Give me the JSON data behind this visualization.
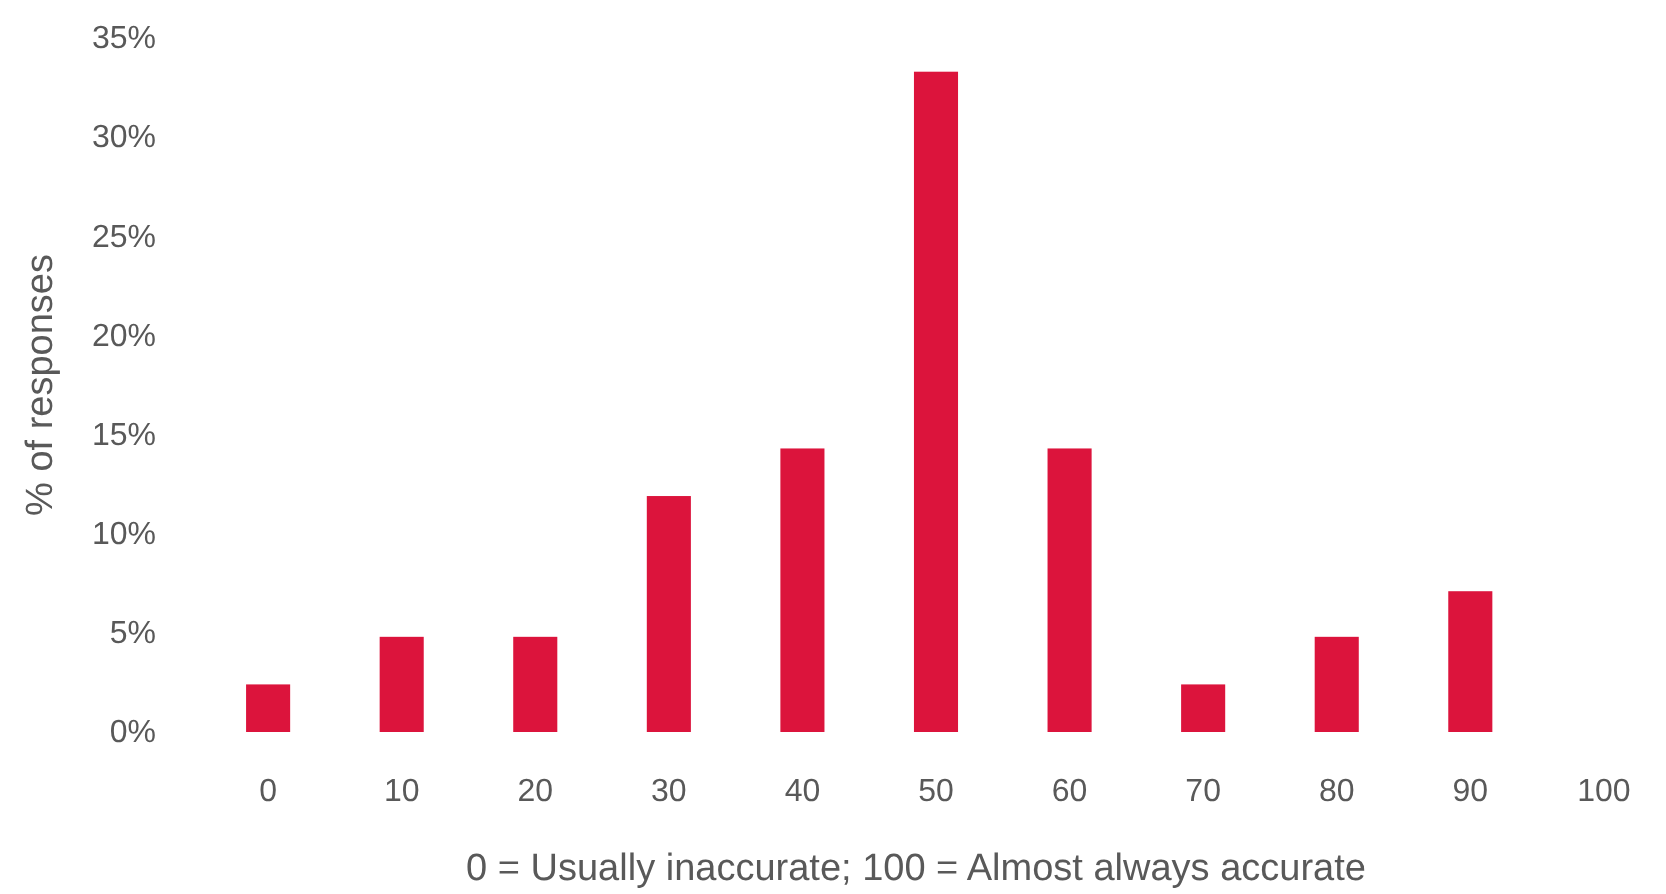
{
  "chart_data": {
    "type": "bar",
    "xlabel": "0 = Usually inaccurate; 100 = Almost always accurate",
    "ylabel": "% of responses",
    "categories": [
      "0",
      "10",
      "20",
      "30",
      "40",
      "50",
      "60",
      "70",
      "80",
      "90",
      "100"
    ],
    "values": [
      2.4,
      4.8,
      4.8,
      11.9,
      14.3,
      33.3,
      14.3,
      2.4,
      4.8,
      7.1,
      null
    ],
    "color": "#dc143c",
    "ylim": [
      0,
      35
    ],
    "yticks": [
      {
        "value": 0,
        "label": "0%"
      },
      {
        "value": 5,
        "label": "5%"
      },
      {
        "value": 10,
        "label": "10%"
      },
      {
        "value": 15,
        "label": "15%"
      },
      {
        "value": 20,
        "label": "20%"
      },
      {
        "value": 25,
        "label": "25%"
      },
      {
        "value": 30,
        "label": "30%"
      },
      {
        "value": 35,
        "label": "35%"
      }
    ],
    "grid": false
  }
}
